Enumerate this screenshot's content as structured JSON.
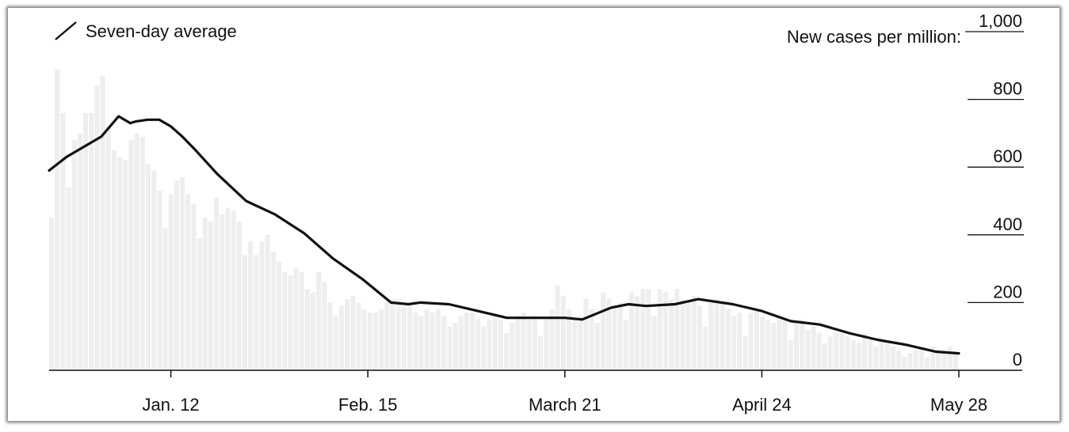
{
  "legend": {
    "label": "Seven-day average"
  },
  "chart_data": {
    "type": "bar",
    "title": "",
    "ylabel": "New cases per million:",
    "y_ticks": [
      0,
      200,
      400,
      600,
      800,
      1000
    ],
    "y_tick_labels": [
      "0",
      "200",
      "400",
      "600",
      "800",
      "1,000"
    ],
    "ylim": [
      0,
      1000
    ],
    "x_range": [
      "2020-12-22",
      "2021-05-28"
    ],
    "x_ticks": [
      "2021-01-12",
      "2021-02-15",
      "2021-03-21",
      "2021-04-24",
      "2021-05-28"
    ],
    "x_tick_labels": [
      "Jan. 12",
      "Feb. 15",
      "March 21",
      "April 24",
      "May 28"
    ],
    "grid": false,
    "legend_position": "top-left",
    "colors": {
      "bars": "#eeeeee",
      "line": "#111111",
      "axis": "#111111"
    },
    "series": [
      {
        "name": "Seven-day average",
        "type": "line",
        "x": [
          "2020-12-22",
          "2020-12-25",
          "2020-12-28",
          "2020-12-31",
          "2021-01-03",
          "2021-01-05",
          "2021-01-06",
          "2021-01-08",
          "2021-01-10",
          "2021-01-12",
          "2021-01-14",
          "2021-01-16",
          "2021-01-20",
          "2021-01-25",
          "2021-01-30",
          "2021-02-04",
          "2021-02-09",
          "2021-02-14",
          "2021-02-19",
          "2021-02-22",
          "2021-02-24",
          "2021-03-01",
          "2021-03-06",
          "2021-03-11",
          "2021-03-16",
          "2021-03-21",
          "2021-03-24",
          "2021-03-29",
          "2021-04-01",
          "2021-04-04",
          "2021-04-09",
          "2021-04-13",
          "2021-04-19",
          "2021-04-24",
          "2021-04-29",
          "2021-05-04",
          "2021-05-09",
          "2021-05-14",
          "2021-05-19",
          "2021-05-24",
          "2021-05-28"
        ],
        "values": [
          590,
          630,
          660,
          690,
          750,
          730,
          735,
          740,
          740,
          720,
          690,
          655,
          580,
          500,
          460,
          405,
          330,
          270,
          200,
          195,
          200,
          195,
          175,
          155,
          155,
          155,
          150,
          185,
          195,
          190,
          195,
          210,
          195,
          175,
          145,
          135,
          110,
          90,
          75,
          55,
          50
        ]
      },
      {
        "name": "",
        "type": "bar",
        "x_start": "2020-12-22",
        "x_step_days": 1,
        "values": [
          450,
          890,
          760,
          540,
          680,
          700,
          760,
          760,
          840,
          870,
          720,
          650,
          630,
          620,
          680,
          700,
          690,
          610,
          590,
          530,
          420,
          520,
          560,
          570,
          520,
          490,
          390,
          450,
          440,
          510,
          460,
          480,
          470,
          440,
          340,
          380,
          340,
          380,
          400,
          350,
          320,
          290,
          280,
          300,
          290,
          240,
          230,
          290,
          260,
          200,
          160,
          190,
          210,
          220,
          200,
          180,
          170,
          170,
          180,
          200,
          210,
          210,
          190,
          200,
          170,
          160,
          180,
          170,
          180,
          160,
          130,
          140,
          160,
          170,
          170,
          150,
          130,
          150,
          160,
          150,
          110,
          140,
          160,
          170,
          150,
          160,
          100,
          150,
          180,
          250,
          220,
          180,
          150,
          160,
          210,
          180,
          140,
          230,
          210,
          190,
          200,
          150,
          230,
          220,
          240,
          240,
          160,
          240,
          230,
          210,
          240,
          210,
          200,
          220,
          190,
          130,
          200,
          210,
          200,
          180,
          160,
          170,
          100,
          170,
          180,
          160,
          150,
          140,
          160,
          150,
          90,
          140,
          150,
          120,
          130,
          110,
          80,
          100,
          110,
          110,
          100,
          90,
          80,
          110,
          90,
          70,
          90,
          80,
          70,
          60,
          40,
          50,
          60,
          70,
          40,
          70,
          60,
          60,
          70,
          50
        ]
      }
    ]
  }
}
